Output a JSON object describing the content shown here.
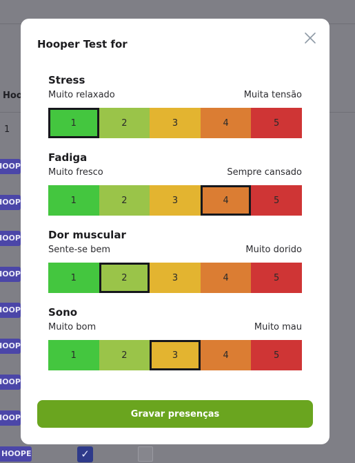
{
  "background": {
    "column_header": "Hoo",
    "row_number": "1",
    "badge_label": "HOOPER",
    "checkbox_checked_glyph": "✓"
  },
  "modal": {
    "title": "Hooper Test for",
    "close_icon": "close-icon",
    "save_label": "Gravar presenças"
  },
  "scales": [
    {
      "title": "Stress",
      "low_label": "Muito relaxado",
      "high_label": "Muita tensão",
      "selected": 1,
      "options": [
        "1",
        "2",
        "3",
        "4",
        "5"
      ]
    },
    {
      "title": "Fadiga",
      "low_label": "Muito fresco",
      "high_label": "Sempre cansado",
      "selected": 4,
      "options": [
        "1",
        "2",
        "3",
        "4",
        "5"
      ]
    },
    {
      "title": "Dor muscular",
      "low_label": "Sente-se bem",
      "high_label": "Muito dorido",
      "selected": 2,
      "options": [
        "1",
        "2",
        "3",
        "4",
        "5"
      ]
    },
    {
      "title": "Sono",
      "low_label": "Muito bom",
      "high_label": "Muito mau",
      "selected": 3,
      "options": [
        "1",
        "2",
        "3",
        "4",
        "5"
      ]
    }
  ],
  "colors": {
    "level_1": "#44c63f",
    "level_2": "#9ac449",
    "level_3": "#e3b430",
    "level_4": "#db7d33",
    "level_5": "#cf3535",
    "save_button": "#6aa51f",
    "badge": "#4b46a8"
  }
}
